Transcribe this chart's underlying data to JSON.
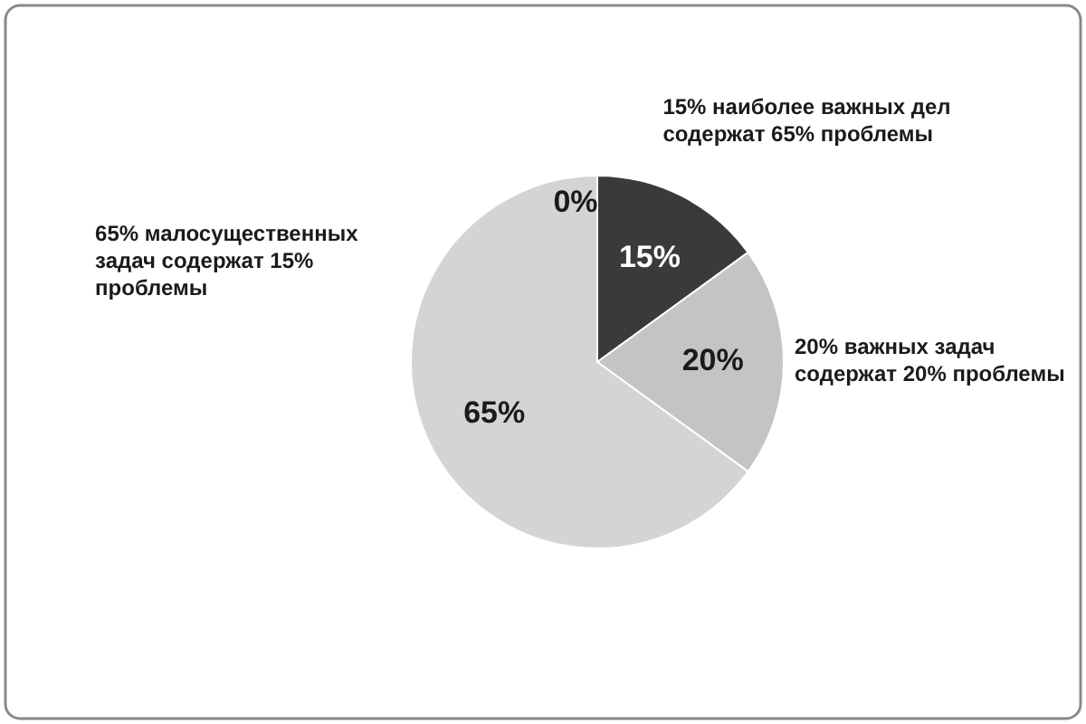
{
  "chart_data": {
    "type": "pie",
    "categories": [
      null,
      "15% наиболее важных дел содержат 65% проблемы",
      "20% важных задач содержат 20% проблемы",
      "65% малосущественных задач содержат 15% проблемы"
    ],
    "values": [
      0,
      15,
      20,
      65
    ],
    "colors": [
      "#555555",
      "#3a3a3a",
      "#c4c4c4",
      "#d4d4d4"
    ],
    "value_labels": [
      "0%",
      "15%",
      "20%",
      "65%"
    ]
  }
}
